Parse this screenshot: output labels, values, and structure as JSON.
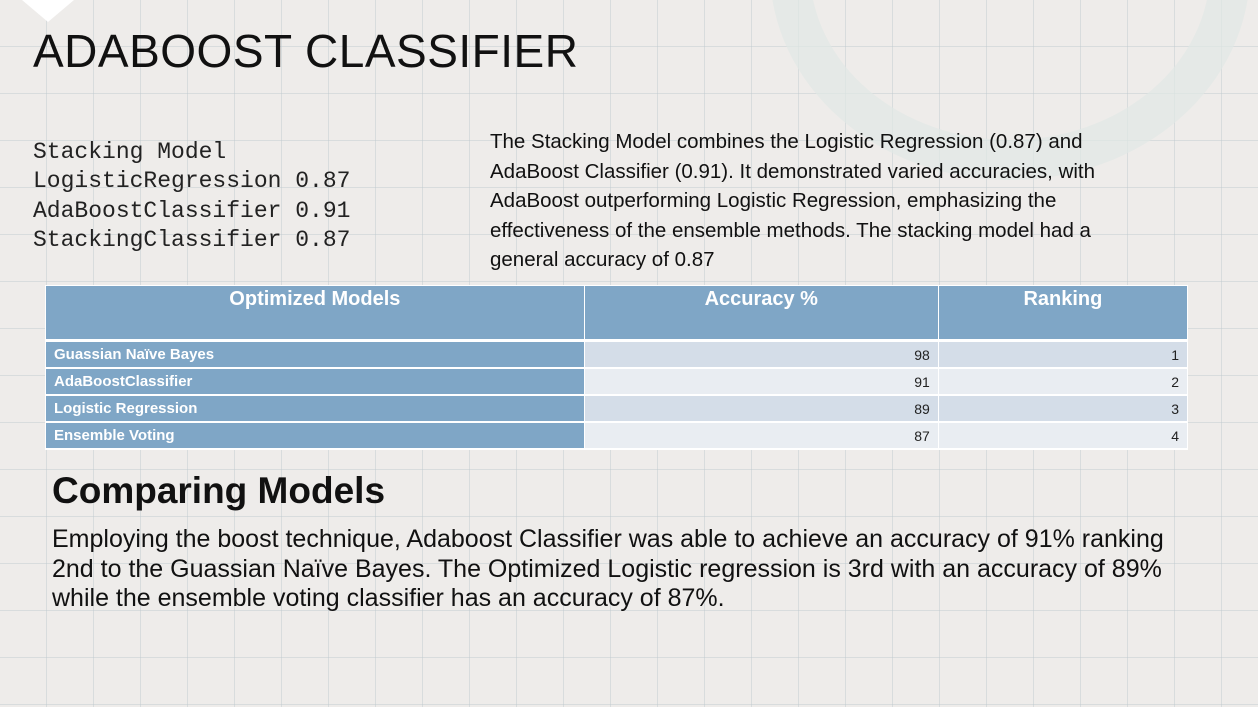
{
  "header": {
    "title": "ADABOOST CLASSIFIER"
  },
  "code_block": {
    "lines": [
      "Stacking Model",
      "LogisticRegression 0.87",
      "AdaBoostClassifier 0.91",
      "StackingClassifier 0.87"
    ]
  },
  "description": "The Stacking Model combines the Logistic Regression (0.87) and AdaBoost Classifier (0.91). It demonstrated varied accuracies, with AdaBoost outperforming Logistic Regression, emphasizing the effectiveness of the ensemble methods. The stacking model had a general accuracy of 0.87",
  "table": {
    "columns": [
      "Optimized Models",
      "Accuracy %",
      "Ranking"
    ],
    "rows": [
      [
        "Guassian Naïve Bayes",
        98,
        1
      ],
      [
        "AdaBoostClassifier",
        91,
        2
      ],
      [
        "Logistic Regression",
        89,
        3
      ],
      [
        "Ensemble Voting",
        87,
        4
      ]
    ]
  },
  "section": {
    "heading": "Comparing Models",
    "body": "Employing the boost technique, Adaboost Classifier was able to achieve an accuracy of 91% ranking 2nd to the Guassian Naïve Bayes. The Optimized Logistic regression is 3rd with an accuracy of 89% while the ensemble voting classifier has an accuracy of 87%."
  }
}
